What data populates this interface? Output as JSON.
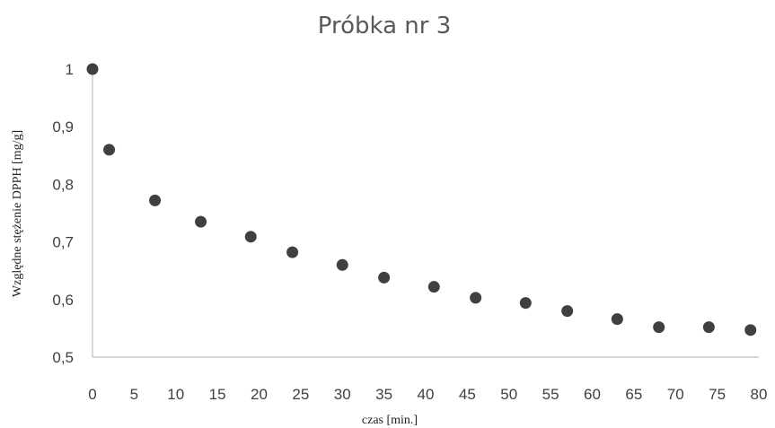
{
  "chart_data": {
    "type": "scatter",
    "title": "Próbka nr 3",
    "xlabel": "czas [min.]",
    "ylabel": "Względne stężenie DPPH [mg/g]",
    "xlim": [
      0,
      80
    ],
    "ylim": [
      0.5,
      1
    ],
    "x_ticks": [
      "0",
      "5",
      "10",
      "15",
      "20",
      "25",
      "30",
      "35",
      "40",
      "45",
      "50",
      "55",
      "60",
      "65",
      "70",
      "75",
      "80"
    ],
    "y_ticks": [
      "0,5",
      "0,6",
      "0,7",
      "0,8",
      "0,9",
      "1"
    ],
    "grid": false,
    "legend": "none",
    "marker_color": "#404040",
    "series": [
      {
        "x": [
          0,
          2,
          7.5,
          13,
          19,
          24,
          30,
          35,
          41,
          46,
          52,
          57,
          63,
          68,
          74,
          79
        ],
        "y": [
          1.0,
          0.86,
          0.772,
          0.735,
          0.709,
          0.682,
          0.66,
          0.638,
          0.622,
          0.603,
          0.594,
          0.58,
          0.566,
          0.552,
          0.552,
          0.547
        ]
      }
    ]
  }
}
